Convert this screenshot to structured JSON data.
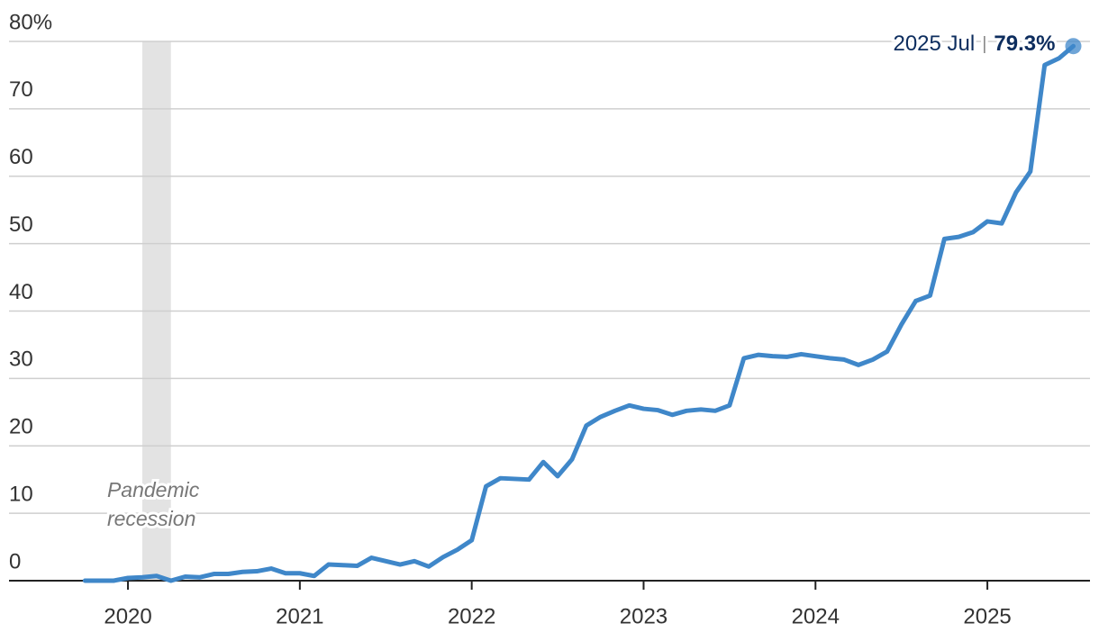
{
  "chart_data": {
    "type": "line",
    "x": [
      "2019-10",
      "2019-11",
      "2019-12",
      "2020-01",
      "2020-02",
      "2020-03",
      "2020-04",
      "2020-05",
      "2020-06",
      "2020-07",
      "2020-08",
      "2020-09",
      "2020-10",
      "2020-11",
      "2020-12",
      "2021-01",
      "2021-02",
      "2021-03",
      "2021-04",
      "2021-05",
      "2021-06",
      "2021-07",
      "2021-08",
      "2021-09",
      "2021-10",
      "2021-11",
      "2021-12",
      "2022-01",
      "2022-02",
      "2022-03",
      "2022-04",
      "2022-05",
      "2022-06",
      "2022-07",
      "2022-08",
      "2022-09",
      "2022-10",
      "2022-11",
      "2022-12",
      "2023-01",
      "2023-02",
      "2023-03",
      "2023-04",
      "2023-05",
      "2023-06",
      "2023-07",
      "2023-08",
      "2023-09",
      "2023-10",
      "2023-11",
      "2023-12",
      "2024-01",
      "2024-02",
      "2024-03",
      "2024-04",
      "2024-05",
      "2024-06",
      "2024-07",
      "2024-08",
      "2024-09",
      "2024-10",
      "2024-11",
      "2024-12",
      "2025-01",
      "2025-02",
      "2025-03",
      "2025-04",
      "2025-05",
      "2025-06",
      "2025-07"
    ],
    "series": [
      {
        "color": "#3f87c9",
        "values": [
          0,
          0,
          0,
          0.4,
          0.5,
          0.7,
          0,
          0.6,
          0.5,
          1,
          1,
          1.3,
          1.4,
          1.8,
          1.1,
          1.1,
          0.7,
          2.4,
          2.3,
          2.2,
          3.4,
          2.9,
          2.4,
          2.9,
          2.1,
          3.5,
          4.6,
          6,
          14,
          15.2,
          15.1,
          15,
          17.6,
          15.5,
          18,
          23,
          24.3,
          25.2,
          26,
          25.5,
          25.3,
          24.6,
          25.2,
          25.4,
          25.2,
          26,
          33,
          33.5,
          33.3,
          33.2,
          33.6,
          33.3,
          33,
          32.8,
          32,
          32.8,
          34,
          38,
          41.5,
          42.3,
          50.7,
          51,
          51.7,
          53.3,
          53,
          57.6,
          60.7,
          76.5,
          77.5,
          79.3
        ]
      }
    ],
    "xlim": [
      2019.308,
      2025.597
    ],
    "xticks": [
      2020,
      2021,
      2022,
      2023,
      2024,
      2025
    ],
    "ylim": [
      0,
      80
    ],
    "yticks": [
      0,
      10,
      20,
      30,
      40,
      50,
      60,
      70,
      {
        "value": 80,
        "label": "80%"
      }
    ],
    "grid": true,
    "shading": {
      "label_lines": [
        "Pandemic",
        "recession"
      ],
      "start": "2020-02",
      "end": "2020-04"
    },
    "annotation": {
      "date": "2025 Jul",
      "separator": "|",
      "value_label": "79.3%"
    }
  }
}
